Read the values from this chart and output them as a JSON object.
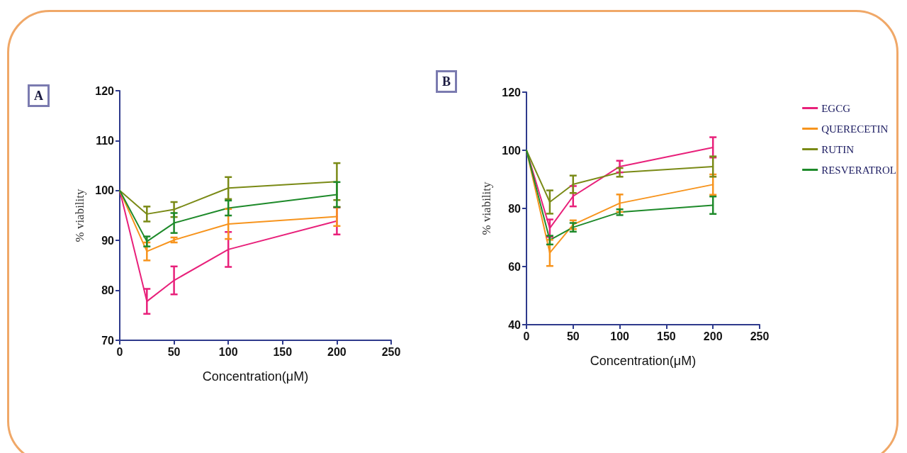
{
  "chart_data": [
    {
      "type": "line",
      "title": "A",
      "xlabel": "Concentration(μM)",
      "ylabel": "% viability",
      "x": [
        0,
        25,
        50,
        100,
        200
      ],
      "xlim": [
        0,
        250
      ],
      "xticks": [
        0,
        50,
        100,
        150,
        200,
        250
      ],
      "ylim": [
        70,
        120
      ],
      "yticks": [
        70,
        80,
        90,
        100,
        110,
        120
      ],
      "grid": false,
      "legend": false,
      "marker": "none",
      "line_style": "solid",
      "series": [
        {
          "color": "#e8207a",
          "values": [
            100,
            77.8,
            82.0,
            88.2,
            93.9
          ],
          "errors": [
            null,
            2.5,
            2.8,
            3.5,
            2.7
          ]
        },
        {
          "color": "#f7941d",
          "values": [
            100,
            87.8,
            90.1,
            93.3,
            94.8
          ],
          "errors": [
            null,
            1.8,
            0.5,
            3,
            1.9
          ]
        },
        {
          "color": "#7a8a16",
          "values": [
            100,
            95.3,
            96.2,
            100.5,
            101.8
          ],
          "errors": [
            null,
            1.5,
            1.5,
            2.2,
            3.7
          ]
        },
        {
          "color": "#1e8a2a",
          "values": [
            100,
            89.8,
            93.5,
            96.5,
            99.2
          ],
          "errors": [
            null,
            1,
            2,
            1.5,
            2.5
          ]
        }
      ]
    },
    {
      "type": "line",
      "title": "B",
      "xlabel": "Concentration(μM)",
      "ylabel": "% viability",
      "x": [
        0,
        25,
        50,
        100,
        200
      ],
      "xlim": [
        0,
        250
      ],
      "xticks": [
        0,
        50,
        100,
        150,
        200,
        250
      ],
      "ylim": [
        40,
        120
      ],
      "yticks": [
        40,
        60,
        80,
        100,
        120
      ],
      "grid": false,
      "legend": "right",
      "marker": "none",
      "line_style": "solid",
      "series": [
        {
          "name": "EGCG",
          "color": "#e8207a",
          "values": [
            100,
            73.2,
            84.2,
            94.4,
            101
          ],
          "errors": [
            null,
            3,
            3.5,
            2,
            3.5
          ]
        },
        {
          "name": "QUERECETIN",
          "color": "#f7941d",
          "values": [
            100,
            64.7,
            74.4,
            81.8,
            88.2
          ],
          "errors": [
            null,
            4.5,
            1.5,
            3,
            3.5
          ]
        },
        {
          "name": "RUTIN",
          "color": "#7a8a16",
          "values": [
            100,
            82.2,
            88.3,
            92.4,
            94.4
          ],
          "errors": [
            null,
            4,
            3,
            1.5,
            3.5
          ]
        },
        {
          "name": "RESVERATROL",
          "color": "#1e8a2a",
          "values": [
            100,
            69.1,
            73.5,
            78.7,
            81.1
          ],
          "errors": [
            null,
            1.5,
            1.5,
            1,
            3
          ]
        }
      ]
    }
  ]
}
